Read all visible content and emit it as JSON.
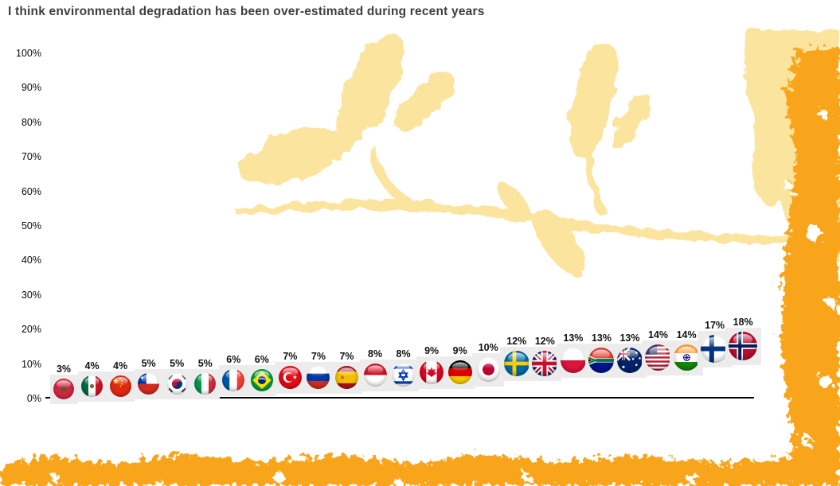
{
  "title": "I think environmental degradation has been over-estimated during recent years",
  "colors": {
    "title_text": "#3e3e3e",
    "accent_orange": "#F9A51B",
    "pale_yellow": "#FBE49E",
    "flag_box_gray": "#ececec",
    "axis_line": "#000000"
  },
  "chart_data": {
    "type": "bar",
    "title": "I think environmental degradation has been over-estimated during recent years",
    "xlabel": "",
    "ylabel": "",
    "ylim": [
      0,
      100
    ],
    "grid": false,
    "legend": "none",
    "yticks": [
      "0%",
      "10%",
      "20%",
      "30%",
      "40%",
      "50%",
      "60%",
      "70%",
      "80%",
      "90%",
      "100%"
    ],
    "categories": [
      "Morocco",
      "Mexico",
      "China",
      "Chile",
      "South Korea",
      "Italy",
      "France",
      "Brazil",
      "Turkey",
      "Russia",
      "Spain",
      "Indonesia",
      "Israel",
      "Canada",
      "Germany",
      "Japan",
      "Sweden",
      "Great Britain",
      "Poland",
      "South Africa",
      "Australia",
      "United States",
      "India",
      "Finland",
      "Norway"
    ],
    "values": [
      3,
      4,
      4,
      5,
      5,
      5,
      6,
      6,
      7,
      7,
      7,
      8,
      8,
      9,
      9,
      10,
      12,
      12,
      13,
      13,
      13,
      14,
      14,
      17,
      18
    ],
    "countries": [
      {
        "name": "Morocco",
        "flag": "morocco",
        "value": 3,
        "label": "3%"
      },
      {
        "name": "Mexico",
        "flag": "mexico",
        "value": 4,
        "label": "4%"
      },
      {
        "name": "China",
        "flag": "china",
        "value": 4,
        "label": "4%"
      },
      {
        "name": "Chile",
        "flag": "chile",
        "value": 5,
        "label": "5%"
      },
      {
        "name": "South Korea",
        "flag": "south-korea",
        "value": 5,
        "label": "5%"
      },
      {
        "name": "Italy",
        "flag": "italy",
        "value": 5,
        "label": "5%"
      },
      {
        "name": "France",
        "flag": "france",
        "value": 6,
        "label": "6%"
      },
      {
        "name": "Brazil",
        "flag": "brazil",
        "value": 6,
        "label": "6%"
      },
      {
        "name": "Turkey",
        "flag": "turkey",
        "value": 7,
        "label": "7%"
      },
      {
        "name": "Russia",
        "flag": "russia",
        "value": 7,
        "label": "7%"
      },
      {
        "name": "Spain",
        "flag": "spain",
        "value": 7,
        "label": "7%"
      },
      {
        "name": "Indonesia",
        "flag": "indonesia",
        "value": 8,
        "label": "8%"
      },
      {
        "name": "Israel",
        "flag": "israel",
        "value": 8,
        "label": "8%"
      },
      {
        "name": "Canada",
        "flag": "canada",
        "value": 9,
        "label": "9%"
      },
      {
        "name": "Germany",
        "flag": "germany",
        "value": 9,
        "label": "9%"
      },
      {
        "name": "Japan",
        "flag": "japan",
        "value": 10,
        "label": "10%"
      },
      {
        "name": "Sweden",
        "flag": "sweden",
        "value": 12,
        "label": "12%"
      },
      {
        "name": "Great Britain",
        "flag": "great-britain",
        "value": 12,
        "label": "12%"
      },
      {
        "name": "Poland",
        "flag": "poland",
        "value": 13,
        "label": "13%"
      },
      {
        "name": "South Africa",
        "flag": "south-africa",
        "value": 13,
        "label": "13%"
      },
      {
        "name": "Australia",
        "flag": "australia",
        "value": 13,
        "label": "13%"
      },
      {
        "name": "United States",
        "flag": "usa",
        "value": 14,
        "label": "14%"
      },
      {
        "name": "India",
        "flag": "india",
        "value": 14,
        "label": "14%"
      },
      {
        "name": "Finland",
        "flag": "finland",
        "value": 17,
        "label": "17%"
      },
      {
        "name": "Norway",
        "flag": "norway",
        "value": 18,
        "label": "18%"
      }
    ]
  }
}
